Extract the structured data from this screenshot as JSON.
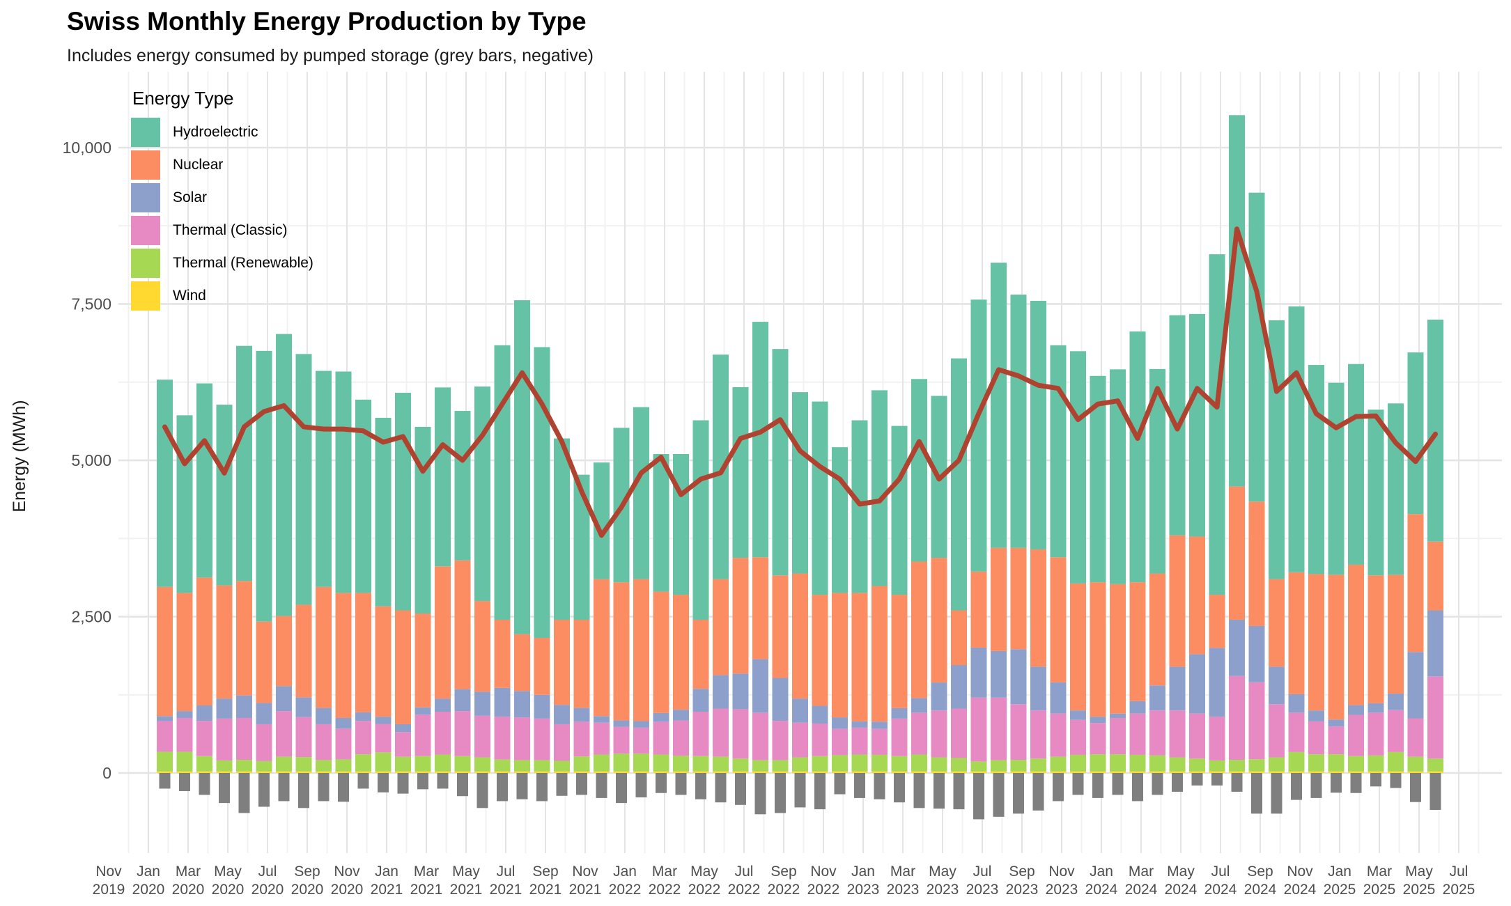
{
  "header": {
    "title": "Swiss Monthly Energy Production by Type",
    "subtitle": "Includes energy consumed by pumped storage (grey bars, negative)"
  },
  "chart_data": {
    "type": "bar",
    "subtype": "stacked-bars-with-line-overlay-and-negative-bars",
    "title": "Swiss Monthly Energy Production by Type",
    "subtitle": "Includes energy consumed by pumped storage (grey bars, negative)",
    "ylabel": "Energy (MWh)",
    "ylim": [
      -900,
      10800
    ],
    "grid": "on",
    "legend_position": "top-left-inside",
    "legend_title": "Energy Type",
    "legend": [
      {
        "label": "Hydroelectric",
        "color": "#66C2A5"
      },
      {
        "label": "Nuclear",
        "color": "#FC8D62"
      },
      {
        "label": "Solar",
        "color": "#8DA0CB"
      },
      {
        "label": "Thermal (Classic)",
        "color": "#E78AC3"
      },
      {
        "label": "Thermal (Renewable)",
        "color": "#A6D854"
      },
      {
        "label": "Wind",
        "color": "#FFD92F"
      }
    ],
    "colors": {
      "pumped_storage_bar": "#7F7F7F",
      "overlay_line": "#B0432F",
      "grid_major": "#E4E4E4",
      "grid_minor": "#F1F1F1",
      "tick_text": "#4D4D4D"
    },
    "y_ticks": [
      {
        "value": 0,
        "label": "0"
      },
      {
        "value": 2500,
        "label": "2,500"
      },
      {
        "value": 5000,
        "label": "5,000"
      },
      {
        "value": 7500,
        "label": "7,500"
      },
      {
        "value": 10000,
        "label": "10,000"
      }
    ],
    "x_ticks": [
      "Nov 2019",
      "Jan 2020",
      "Mar 2020",
      "May 2020",
      "Jul 2020",
      "Sep 2020",
      "Nov 2020",
      "Jan 2021",
      "Mar 2021",
      "May 2021",
      "Jul 2021",
      "Sep 2021",
      "Nov 2021",
      "Jan 2022",
      "Mar 2022",
      "May 2022",
      "Jul 2022",
      "Sep 2022",
      "Nov 2022",
      "Jan 2023",
      "Mar 2023",
      "May 2023",
      "Jul 2023",
      "Sep 2023",
      "Nov 2023",
      "Jan 2024",
      "Mar 2024",
      "May 2024",
      "Jul 2024",
      "Sep 2024",
      "Nov 2024",
      "Jan 2025",
      "Mar 2025",
      "May 2025",
      "Jul 2025"
    ],
    "months_start": "Jan 2020",
    "months_end": "May 2025",
    "series": [
      {
        "name": "Wind",
        "values": [
          25,
          25,
          25,
          25,
          25,
          25,
          25,
          25,
          25,
          25,
          25,
          25,
          25,
          25,
          25,
          25,
          25,
          25,
          25,
          25,
          25,
          25,
          25,
          25,
          25,
          25,
          25,
          25,
          25,
          25,
          25,
          25,
          25,
          25,
          25,
          25,
          25,
          25,
          25,
          25,
          25,
          25,
          25,
          25,
          25,
          25,
          25,
          25,
          25,
          25,
          25,
          25,
          25,
          25,
          25,
          25,
          25,
          25,
          25,
          25,
          25,
          25,
          25,
          25,
          25
        ]
      },
      {
        "name": "Thermal (Renewable)",
        "values": [
          315,
          315,
          245,
          175,
          185,
          165,
          235,
          230,
          182,
          193,
          275,
          305,
          235,
          245,
          270,
          245,
          225,
          190,
          180,
          180,
          170,
          240,
          270,
          285,
          285,
          270,
          250,
          245,
          235,
          205,
          180,
          180,
          225,
          245,
          260,
          270,
          265,
          245,
          270,
          225,
          215,
          160,
          180,
          185,
          205,
          235,
          265,
          275,
          275,
          265,
          255,
          225,
          205,
          175,
          185,
          195,
          225,
          310,
          275,
          275,
          245,
          255,
          310,
          235,
          205
        ]
      },
      {
        "name": "Thermal (Classic)",
        "values": [
          490,
          540,
          563,
          670,
          670,
          590,
          730,
          640,
          573,
          492,
          533,
          455,
          394,
          663,
          685,
          720,
          665,
          685,
          685,
          665,
          585,
          555,
          510,
          430,
          415,
          525,
          565,
          710,
          770,
          790,
          760,
          628,
          555,
          520,
          420,
          430,
          415,
          600,
          670,
          750,
          790,
          1020,
          1000,
          890,
          770,
          690,
          560,
          500,
          580,
          660,
          720,
          750,
          720,
          700,
          1340,
          1230,
          850,
          630,
          525,
          445,
          660,
          685,
          670,
          614,
          1314
        ]
      },
      {
        "name": "Solar",
        "values": [
          80,
          110,
          247,
          320,
          360,
          340,
          400,
          315,
          260,
          170,
          137,
          115,
          126,
          117,
          210,
          350,
          385,
          460,
          420,
          380,
          310,
          220,
          105,
          100,
          105,
          140,
          172,
          365,
          536,
          570,
          855,
          687,
          385,
          285,
          185,
          100,
          115,
          168,
          233,
          447,
          696,
          800,
          745,
          880,
          700,
          500,
          150,
          100,
          70,
          200,
          400,
          700,
          950,
          1100,
          900,
          900,
          600,
          295,
          175,
          110,
          155,
          150,
          265,
          1061,
          1056
        ]
      },
      {
        "name": "Nuclear",
        "values": [
          2065,
          1890,
          2045,
          1810,
          1830,
          1300,
          1120,
          1480,
          1935,
          2000,
          1910,
          1765,
          1820,
          1500,
          2115,
          2060,
          1450,
          1090,
          910,
          910,
          1360,
          1410,
          2190,
          2210,
          2270,
          1940,
          1838,
          1105,
          1534,
          1850,
          1630,
          1640,
          2000,
          1775,
          1990,
          2055,
          2170,
          1812,
          2182,
          1993,
          874,
          1215,
          1650,
          1620,
          1875,
          2000,
          2030,
          2150,
          2070,
          1900,
          1790,
          2100,
          1880,
          850,
          2130,
          1990,
          1400,
          1950,
          2180,
          2315,
          2245,
          2045,
          1900,
          2205,
          1100
        ]
      },
      {
        "name": "Hydroelectric",
        "values": [
          3315,
          2840,
          3105,
          2890,
          3760,
          4330,
          4510,
          4010,
          3455,
          3540,
          3090,
          3015,
          3480,
          2985,
          2860,
          2390,
          3430,
          4390,
          5340,
          4650,
          2900,
          2320,
          1865,
          2470,
          2750,
          2200,
          2250,
          3190,
          3590,
          2730,
          3765,
          3620,
          2900,
          3090,
          2330,
          2760,
          3130,
          2700,
          2920,
          2590,
          4030,
          4350,
          4560,
          4050,
          3975,
          3390,
          3715,
          3300,
          3435,
          4010,
          3270,
          3520,
          3560,
          5445,
          5940,
          4940,
          4140,
          4250,
          3345,
          3070,
          3210,
          2650,
          2740,
          2585,
          3550
        ]
      }
    ],
    "pumped_storage_values": [
      -250,
      -290,
      -350,
      -480,
      -640,
      -540,
      -450,
      -560,
      -450,
      -460,
      -250,
      -310,
      -330,
      -260,
      -250,
      -370,
      -560,
      -450,
      -420,
      -450,
      -365,
      -350,
      -400,
      -480,
      -390,
      -320,
      -350,
      -420,
      -470,
      -510,
      -660,
      -640,
      -550,
      -580,
      -340,
      -400,
      -420,
      -470,
      -560,
      -570,
      -580,
      -740,
      -700,
      -650,
      -600,
      -450,
      -350,
      -400,
      -350,
      -450,
      -350,
      -300,
      -200,
      -200,
      -300,
      -650,
      -650,
      -430,
      -400,
      -315,
      -320,
      -215,
      -240,
      -465,
      -590
    ],
    "line_values": [
      5535,
      4945,
      5315,
      4795,
      5535,
      5780,
      5875,
      5535,
      5500,
      5500,
      5470,
      5290,
      5380,
      4825,
      5250,
      5000,
      5400,
      5900,
      6400,
      5900,
      5300,
      4500,
      3800,
      4250,
      4800,
      5050,
      4450,
      4700,
      4800,
      5350,
      5450,
      5650,
      5150,
      4900,
      4700,
      4300,
      4350,
      4700,
      5300,
      4700,
      5000,
      5750,
      6450,
      6350,
      6200,
      6150,
      5650,
      5900,
      5950,
      5350,
      6150,
      5500,
      6150,
      5850,
      8700,
      7700,
      6100,
      6400,
      5745,
      5520,
      5700,
      5710,
      5280,
      4980,
      5420
    ]
  }
}
